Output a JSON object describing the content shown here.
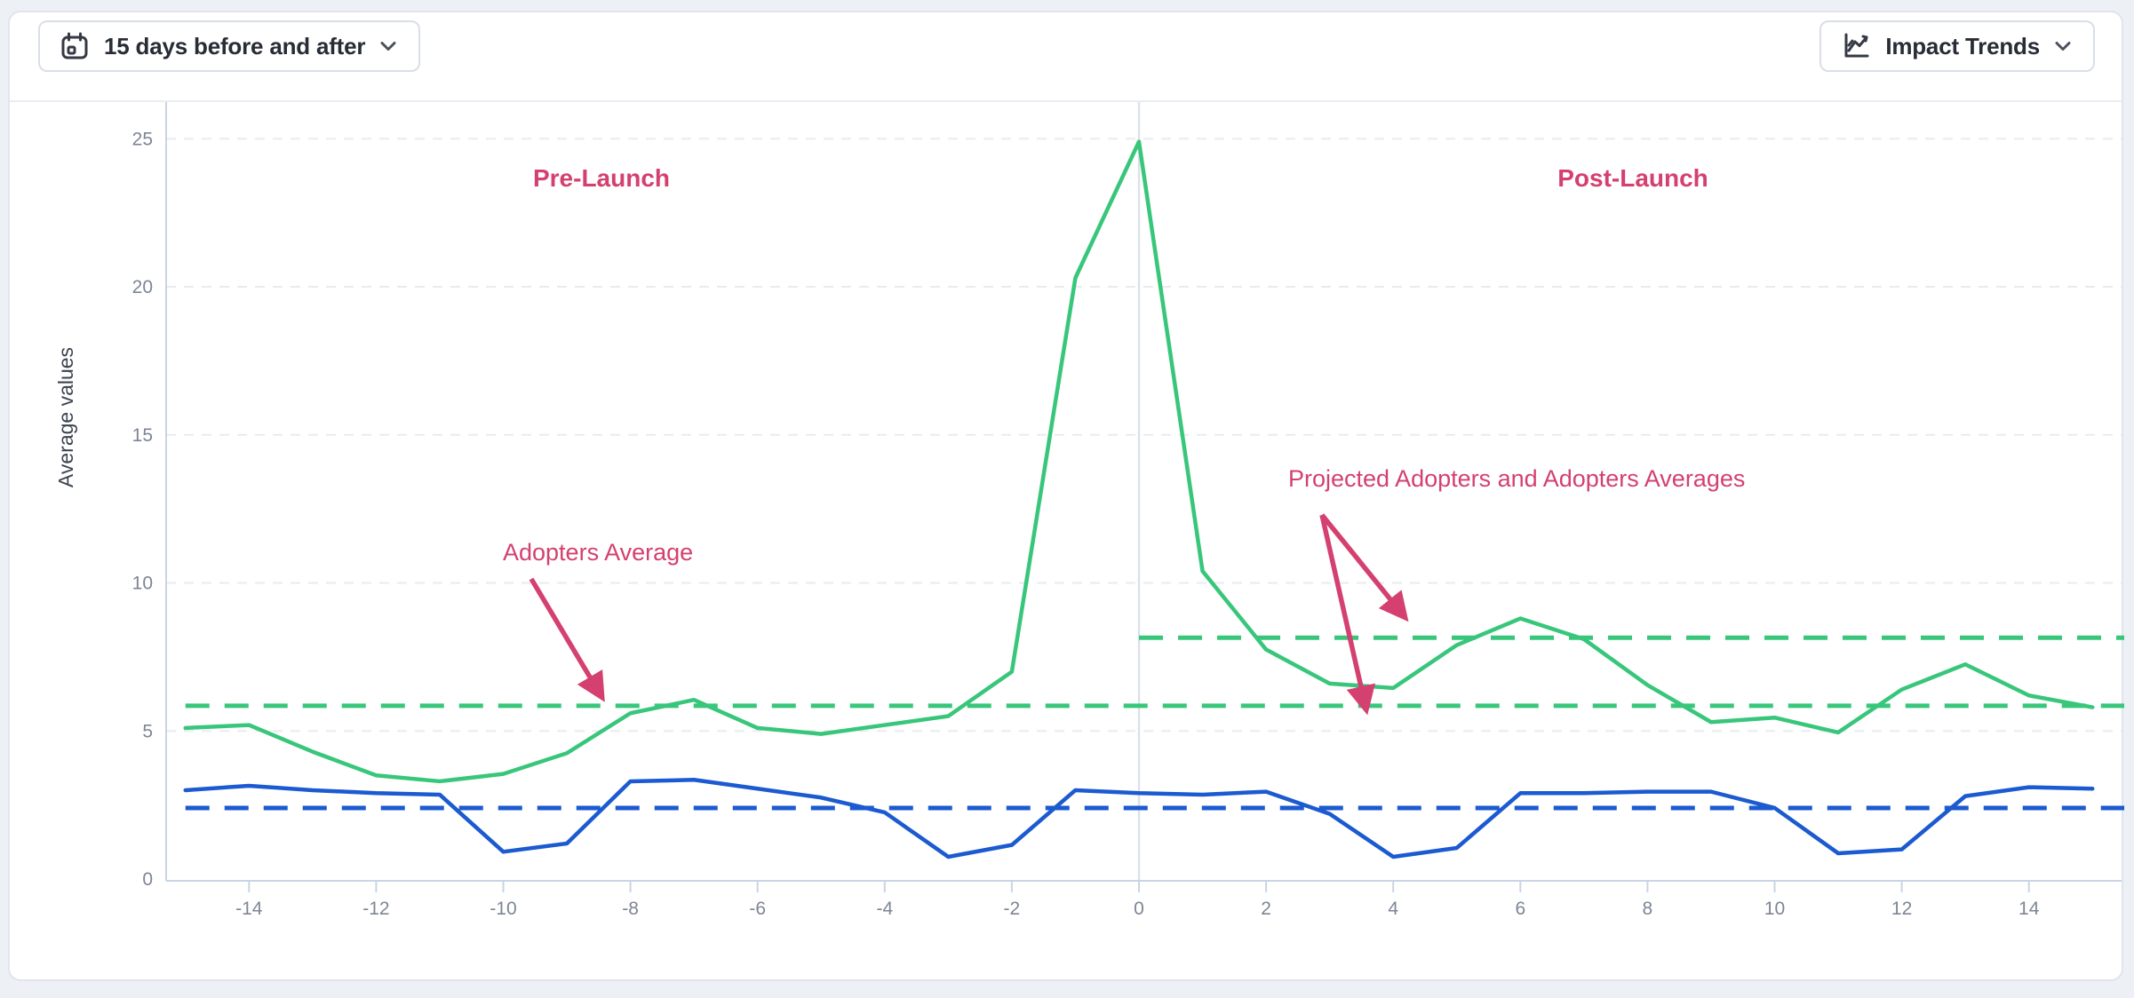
{
  "toolbar": {
    "date_range_label": "15 days before and after",
    "impact_trends_label": "Impact Trends"
  },
  "colors": {
    "adopters_green": "#38c67b",
    "projected_blue": "#1b5ad0",
    "annotation_pink": "#d4406f",
    "axis_line": "#c9d4e4",
    "gridline": "#e9ebf0",
    "launch_line": "#dde1e9",
    "tick_text": "#7d8595",
    "axis_title_text": "#3c434e"
  },
  "chart_data": {
    "type": "line",
    "title": "",
    "xlabel": "",
    "ylabel": "Average values",
    "xlim": [
      -15,
      15
    ],
    "ylim": [
      0,
      25
    ],
    "x_ticks": [
      -14,
      -12,
      -10,
      -8,
      -6,
      -4,
      -2,
      0,
      2,
      4,
      6,
      8,
      10,
      12,
      14
    ],
    "y_ticks": [
      0,
      5,
      10,
      15,
      20,
      25
    ],
    "grid": "horizontal-dashed",
    "launch_marker_x": 0,
    "x": [
      -15,
      -14,
      -13,
      -12,
      -11,
      -10,
      -9,
      -8,
      -7,
      -6,
      -5,
      -4,
      -3,
      -2,
      -1,
      0,
      1,
      2,
      3,
      4,
      5,
      6,
      7,
      8,
      9,
      10,
      11,
      12,
      13,
      14,
      15
    ],
    "series": [
      {
        "name": "Adopters",
        "color": "#38c67b",
        "style": "solid",
        "values": [
          5.1,
          5.2,
          4.3,
          3.5,
          3.3,
          3.55,
          4.25,
          5.6,
          6.05,
          5.1,
          4.9,
          5.2,
          5.5,
          7.0,
          20.3,
          24.9,
          10.4,
          7.75,
          6.6,
          6.45,
          7.9,
          8.8,
          8.1,
          6.55,
          5.3,
          5.45,
          4.95,
          6.4,
          7.25,
          6.2,
          5.8
        ]
      },
      {
        "name": "Projected Adopters",
        "color": "#1b5ad0",
        "style": "solid",
        "values": [
          3.0,
          3.15,
          3.0,
          2.9,
          2.85,
          0.92,
          1.2,
          3.3,
          3.35,
          3.05,
          2.75,
          2.25,
          0.75,
          1.15,
          3.0,
          2.9,
          2.85,
          2.95,
          2.2,
          0.75,
          1.05,
          2.9,
          2.9,
          2.95,
          2.95,
          2.4,
          0.87,
          1.0,
          2.8,
          3.1,
          3.05
        ]
      }
    ],
    "reference_lines": [
      {
        "name": "adopters-average",
        "value": 5.85,
        "color": "#38c67b",
        "style": "dashed",
        "x_span": [
          -15,
          15.5
        ]
      },
      {
        "name": "adopters-average-post",
        "value": 8.15,
        "color": "#38c67b",
        "style": "dashed",
        "x_span": [
          0,
          15.5
        ]
      },
      {
        "name": "projected-adopters-average",
        "value": 2.4,
        "color": "#1b5ad0",
        "style": "dashed",
        "x_span": [
          -15,
          15.5
        ]
      }
    ],
    "annotations": {
      "pre_launch": "Pre-Launch",
      "post_launch": "Post-Launch",
      "adopters_average": "Adopters Average",
      "projected_averages": "Projected Adopters and Adopters Averages"
    }
  }
}
